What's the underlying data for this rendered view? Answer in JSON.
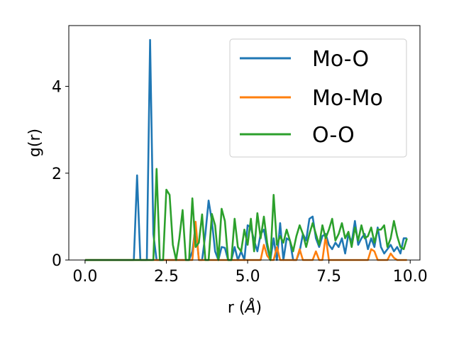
{
  "chart_data": {
    "type": "line",
    "title": "",
    "xlabel_prefix": "r (",
    "xlabel_unit": "Å",
    "xlabel_suffix": ")",
    "ylabel": "g(r)",
    "xlim": [
      -0.5,
      10.3
    ],
    "ylim": [
      0,
      5.4
    ],
    "xticks": [
      0.0,
      2.5,
      5.0,
      7.5,
      10.0
    ],
    "xtick_labels": [
      "0.0",
      "2.5",
      "5.0",
      "7.5",
      "10.0"
    ],
    "yticks": [
      0,
      2,
      4
    ],
    "ytick_labels": [
      "0",
      "2",
      "4"
    ],
    "grid": false,
    "legend_position": "top-right",
    "x": [
      0.0,
      0.1,
      0.2,
      0.3,
      0.4,
      0.5,
      0.6,
      0.7,
      0.8,
      0.9,
      1.0,
      1.1,
      1.2,
      1.3,
      1.4,
      1.5,
      1.6,
      1.7,
      1.8,
      1.9,
      2.0,
      2.1,
      2.2,
      2.3,
      2.4,
      2.5,
      2.6,
      2.7,
      2.8,
      2.9,
      3.0,
      3.1,
      3.2,
      3.3,
      3.4,
      3.5,
      3.6,
      3.7,
      3.8,
      3.9,
      4.0,
      4.1,
      4.2,
      4.3,
      4.4,
      4.5,
      4.6,
      4.7,
      4.8,
      4.9,
      5.0,
      5.1,
      5.2,
      5.3,
      5.4,
      5.5,
      5.6,
      5.7,
      5.8,
      5.9,
      6.0,
      6.1,
      6.2,
      6.3,
      6.4,
      6.5,
      6.6,
      6.7,
      6.8,
      6.9,
      7.0,
      7.1,
      7.2,
      7.3,
      7.4,
      7.5,
      7.6,
      7.7,
      7.8,
      7.9,
      8.0,
      8.1,
      8.2,
      8.3,
      8.4,
      8.5,
      8.6,
      8.7,
      8.8,
      8.9,
      9.0,
      9.1,
      9.2,
      9.3,
      9.4,
      9.5,
      9.6,
      9.7,
      9.8,
      9.9
    ],
    "series": [
      {
        "name": "Mo-O",
        "color": "#1f77b4",
        "values": [
          0,
          0,
          0,
          0,
          0,
          0,
          0,
          0,
          0,
          0,
          0,
          0,
          0,
          0,
          0,
          0,
          1.95,
          0,
          0,
          0,
          5.07,
          0.6,
          0,
          0,
          0,
          0,
          0,
          0,
          0,
          0,
          0,
          0,
          0,
          0.2,
          0.8,
          0,
          0,
          0.6,
          1.37,
          0.9,
          0.2,
          0,
          0.3,
          0.28,
          0,
          0,
          0.3,
          0,
          0.2,
          0,
          0.8,
          0.75,
          0.45,
          0.2,
          0.6,
          0.7,
          0.3,
          0,
          0.5,
          0,
          0.85,
          0,
          0.5,
          0.45,
          0,
          0,
          0.2,
          0.6,
          0.45,
          0.95,
          1.0,
          0.5,
          0.3,
          0.55,
          0.6,
          0.35,
          0.25,
          0.4,
          0.3,
          0.5,
          0.15,
          0.6,
          0.4,
          0.9,
          0.35,
          0.5,
          0.6,
          0.25,
          0.5,
          0.3,
          0.75,
          0.3,
          0.15,
          0.25,
          0.35,
          0.2,
          0.3,
          0.15,
          0.5,
          0.5
        ]
      },
      {
        "name": "Mo-Mo",
        "color": "#ff7f0e",
        "values": [
          0,
          0,
          0,
          0,
          0,
          0,
          0,
          0,
          0,
          0,
          0,
          0,
          0,
          0,
          0,
          0,
          0,
          0,
          0,
          0,
          0,
          0,
          0,
          0,
          0,
          0,
          0,
          0,
          0,
          0,
          0,
          0,
          0,
          0,
          0.88,
          0,
          0,
          0,
          0,
          0,
          0,
          0,
          0,
          0,
          0,
          0,
          0,
          0,
          0,
          0,
          0,
          0,
          0,
          0,
          0,
          0.35,
          0.1,
          0,
          0,
          0.3,
          0,
          0,
          0,
          0,
          0,
          0,
          0.25,
          0,
          0,
          0,
          0,
          0.2,
          0,
          0,
          0.55,
          0,
          0,
          0,
          0,
          0,
          0,
          0,
          0,
          0,
          0,
          0,
          0,
          0,
          0.25,
          0.2,
          0,
          0,
          0,
          0,
          0.15,
          0.05,
          0,
          0,
          0,
          0
        ]
      },
      {
        "name": "O-O",
        "color": "#2ca02c",
        "values": [
          0,
          0,
          0,
          0,
          0,
          0,
          0,
          0,
          0,
          0,
          0,
          0,
          0,
          0,
          0,
          0,
          0,
          0,
          0,
          0,
          0,
          0,
          2.1,
          0,
          0,
          1.62,
          1.5,
          0.35,
          0,
          0.5,
          1.15,
          0,
          0,
          1.42,
          0.3,
          0.4,
          1.05,
          0,
          0,
          1.06,
          0.8,
          0,
          1.18,
          0.9,
          0,
          0,
          0.95,
          0.3,
          0.2,
          0.7,
          0.35,
          0.95,
          0.2,
          1.08,
          0.5,
          1.0,
          0.4,
          0,
          1.5,
          0.35,
          0.55,
          0.4,
          0.7,
          0.45,
          0.2,
          0.55,
          0.8,
          0.6,
          0.3,
          0.6,
          0.85,
          0.6,
          0.35,
          0.8,
          0.5,
          0.7,
          0.95,
          0.45,
          0.6,
          0.85,
          0.5,
          0.65,
          0.3,
          0.75,
          0.45,
          0.8,
          0.5,
          0.55,
          0.75,
          0.4,
          0.7,
          0.7,
          0.8,
          0.3,
          0.5,
          0.9,
          0.55,
          0.3,
          0.25,
          0.5
        ]
      }
    ]
  }
}
